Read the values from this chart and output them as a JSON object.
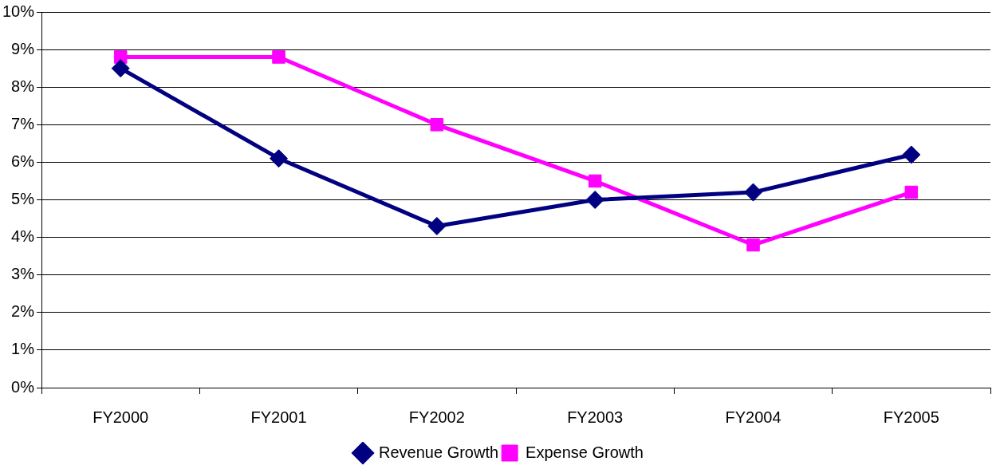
{
  "chart_data": {
    "type": "line",
    "categories": [
      "FY2000",
      "FY2001",
      "FY2002",
      "FY2003",
      "FY2004",
      "FY2005"
    ],
    "series": [
      {
        "name": "Revenue Growth",
        "color": "#000080",
        "marker": "diamond",
        "values": [
          8.5,
          6.1,
          4.3,
          5.0,
          5.2,
          6.2
        ]
      },
      {
        "name": "Expense Growth",
        "color": "#ff00ff",
        "marker": "square",
        "values": [
          8.8,
          8.8,
          7.0,
          5.5,
          3.8,
          5.2
        ]
      }
    ],
    "ylim": [
      0,
      10
    ],
    "yticks": [
      {
        "value": 0,
        "label": "0%"
      },
      {
        "value": 1,
        "label": "1%"
      },
      {
        "value": 2,
        "label": "2%"
      },
      {
        "value": 3,
        "label": "3%"
      },
      {
        "value": 4,
        "label": "4%"
      },
      {
        "value": 5,
        "label": "5%"
      },
      {
        "value": 6,
        "label": "6%"
      },
      {
        "value": 7,
        "label": "7%"
      },
      {
        "value": 8,
        "label": "8%"
      },
      {
        "value": 9,
        "label": "9%"
      },
      {
        "value": 10,
        "label": "10%"
      }
    ],
    "grid": "y",
    "legend": "bottom",
    "line_style": "solid"
  }
}
